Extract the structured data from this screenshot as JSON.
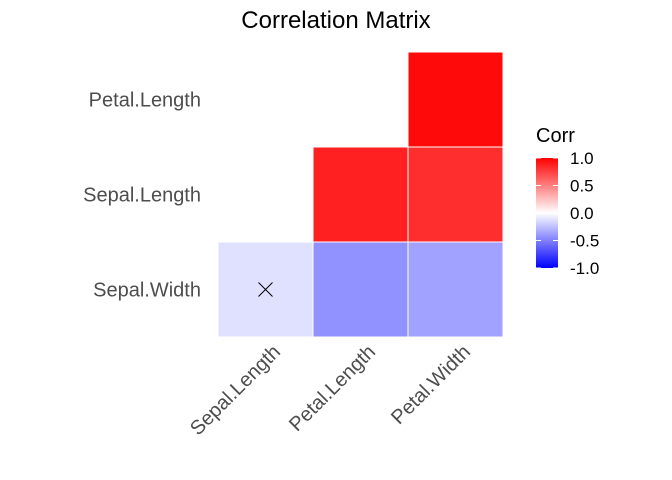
{
  "chart_data": {
    "type": "heatmap",
    "title": "Correlation Matrix",
    "x_labels": [
      "Sepal.Length",
      "Petal.Length",
      "Petal.Width"
    ],
    "y_labels": [
      "Sepal.Width",
      "Sepal.Length",
      "Petal.Length"
    ],
    "cells": [
      {
        "x": "Sepal.Length",
        "y": "Sepal.Width",
        "value": -0.12,
        "insignificant": true
      },
      {
        "x": "Petal.Length",
        "y": "Sepal.Width",
        "value": -0.43,
        "insignificant": false
      },
      {
        "x": "Petal.Width",
        "y": "Sepal.Width",
        "value": -0.37,
        "insignificant": false
      },
      {
        "x": "Petal.Length",
        "y": "Sepal.Length",
        "value": 0.87,
        "insignificant": false
      },
      {
        "x": "Petal.Width",
        "y": "Sepal.Length",
        "value": 0.82,
        "insignificant": false
      },
      {
        "x": "Petal.Width",
        "y": "Petal.Length",
        "value": 0.96,
        "insignificant": false
      }
    ],
    "legend": {
      "title": "Corr",
      "placement": "right",
      "ticks": [
        "1.0",
        "0.5",
        "0.0",
        "-0.5",
        "-1.0"
      ],
      "range": [
        -1,
        1
      ],
      "colors": {
        "low": "#0000ff",
        "mid": "#ffffff",
        "high": "#ff0000"
      }
    },
    "grid": false
  }
}
